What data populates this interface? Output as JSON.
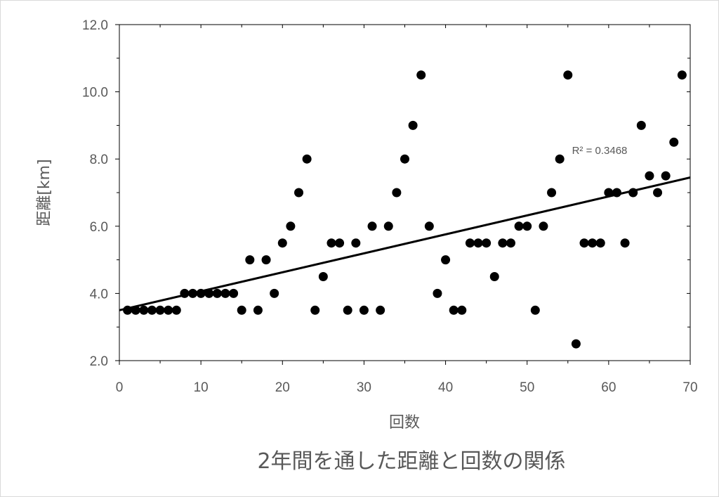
{
  "chart_data": {
    "type": "scatter",
    "title": "",
    "caption": "2年間を通した距離と回数の関係",
    "xlabel": "回数",
    "ylabel": "距離[km]",
    "xlim": [
      0,
      70
    ],
    "ylim": [
      2.0,
      12.0
    ],
    "x_ticks": [
      "0",
      "10",
      "20",
      "30",
      "40",
      "50",
      "60",
      "70"
    ],
    "y_ticks": [
      "2.0",
      "4.0",
      "6.0",
      "8.0",
      "10.0",
      "12.0"
    ],
    "grid": false,
    "legend": "none",
    "marker_color": "#000000",
    "points": [
      [
        1,
        3.5
      ],
      [
        2,
        3.5
      ],
      [
        3,
        3.5
      ],
      [
        4,
        3.5
      ],
      [
        5,
        3.5
      ],
      [
        6,
        3.5
      ],
      [
        7,
        3.5
      ],
      [
        8,
        4.0
      ],
      [
        9,
        4.0
      ],
      [
        10,
        4.0
      ],
      [
        11,
        4.0
      ],
      [
        12,
        4.0
      ],
      [
        13,
        4.0
      ],
      [
        14,
        4.0
      ],
      [
        15,
        3.5
      ],
      [
        16,
        5.0
      ],
      [
        17,
        3.5
      ],
      [
        18,
        5.0
      ],
      [
        19,
        4.0
      ],
      [
        20,
        5.5
      ],
      [
        21,
        6.0
      ],
      [
        22,
        7.0
      ],
      [
        23,
        8.0
      ],
      [
        24,
        3.5
      ],
      [
        25,
        4.5
      ],
      [
        26,
        5.5
      ],
      [
        27,
        5.5
      ],
      [
        28,
        3.5
      ],
      [
        29,
        5.5
      ],
      [
        30,
        3.5
      ],
      [
        31,
        6.0
      ],
      [
        32,
        3.5
      ],
      [
        33,
        6.0
      ],
      [
        34,
        7.0
      ],
      [
        35,
        8.0
      ],
      [
        36,
        9.0
      ],
      [
        37,
        10.5
      ],
      [
        38,
        6.0
      ],
      [
        39,
        4.0
      ],
      [
        40,
        5.0
      ],
      [
        41,
        3.5
      ],
      [
        42,
        3.5
      ],
      [
        43,
        5.5
      ],
      [
        44,
        5.5
      ],
      [
        45,
        5.5
      ],
      [
        46,
        4.5
      ],
      [
        47,
        5.5
      ],
      [
        48,
        5.5
      ],
      [
        49,
        6.0
      ],
      [
        50,
        6.0
      ],
      [
        51,
        3.5
      ],
      [
        52,
        6.0
      ],
      [
        53,
        7.0
      ],
      [
        54,
        8.0
      ],
      [
        55,
        10.5
      ],
      [
        56,
        2.5
      ],
      [
        57,
        5.5
      ],
      [
        58,
        5.5
      ],
      [
        59,
        5.5
      ],
      [
        60,
        7.0
      ],
      [
        61,
        7.0
      ],
      [
        62,
        5.5
      ],
      [
        63,
        7.0
      ],
      [
        64,
        9.0
      ],
      [
        65,
        7.5
      ],
      [
        66,
        7.0
      ],
      [
        67,
        7.5
      ],
      [
        68,
        8.5
      ],
      [
        69,
        10.5
      ]
    ],
    "trendline": {
      "type": "linear",
      "start": [
        0,
        3.5
      ],
      "end": [
        70,
        7.45
      ],
      "color": "#000000",
      "label": "R² = 0.3468",
      "label_at": [
        55.5,
        8.15
      ]
    }
  }
}
